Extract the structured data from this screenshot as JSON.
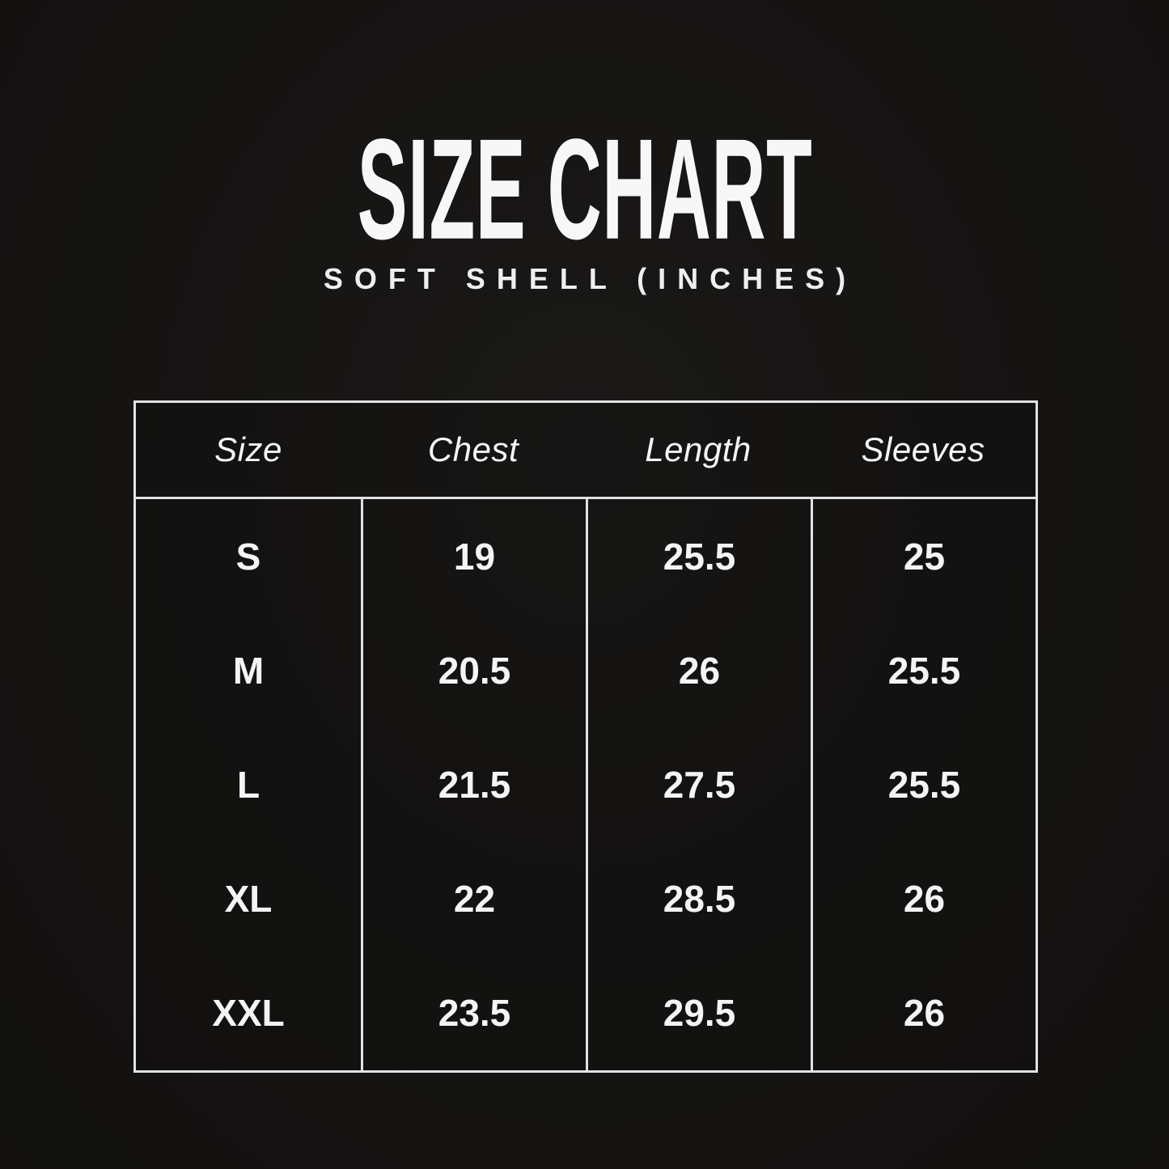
{
  "page": {
    "title": "SIZE CHART",
    "subtitle": "SOFT SHELL (INCHES)",
    "colors": {
      "background": "#151413",
      "text": "#f5f5f5",
      "table_border": "#e2e2e2"
    }
  },
  "chart_data": {
    "type": "table",
    "title": "SIZE CHART",
    "subtitle": "SOFT SHELL (INCHES)",
    "units": "inches",
    "columns": [
      "Size",
      "Chest",
      "Length",
      "Sleeves"
    ],
    "rows": [
      {
        "size": "S",
        "chest": "19",
        "length": "25.5",
        "sleeves": "25"
      },
      {
        "size": "M",
        "chest": "20.5",
        "length": "26",
        "sleeves": "25.5"
      },
      {
        "size": "L",
        "chest": "21.5",
        "length": "27.5",
        "sleeves": "25.5"
      },
      {
        "size": "XL",
        "chest": "22",
        "length": "28.5",
        "sleeves": "26"
      },
      {
        "size": "XXL",
        "chest": "23.5",
        "length": "29.5",
        "sleeves": "26"
      }
    ]
  }
}
